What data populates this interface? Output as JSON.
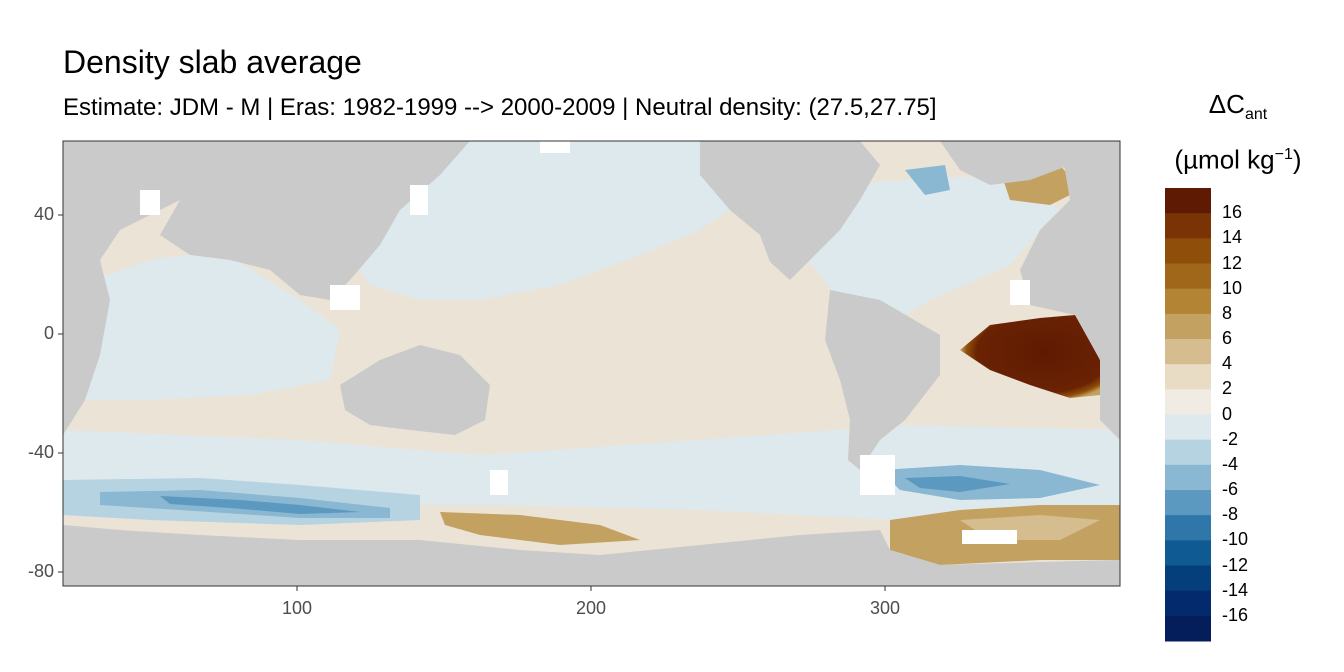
{
  "chart_data": {
    "type": "heatmap",
    "title": "Density slab average",
    "subtitle": "Estimate: JDM - M | Eras: 1982-1999 --> 2000-2009 | Neutral density: (27.5,27.75]",
    "legend": {
      "title_main": "ΔC",
      "title_sub": "ant",
      "unit_main": "(µmol kg",
      "unit_sup": "−1",
      "unit_close": ")",
      "placement": "right",
      "breaks": [
        "16",
        "14",
        "12",
        "10",
        "8",
        "6",
        "4",
        "2",
        "0",
        "-2",
        "-4",
        "-6",
        "-8",
        "-10",
        "-12",
        "-14",
        "-16"
      ],
      "colors": [
        "#5e1a02",
        "#7a3304",
        "#8f4e09",
        "#a0661a",
        "#b28434",
        "#c3a160",
        "#d6bd8f",
        "#e8dcc4",
        "#f0ece4",
        "#dee9ee",
        "#b6d3e2",
        "#8ab7d1",
        "#5b99c1",
        "#2f77a9",
        "#0f5a93",
        "#043f7c",
        "#022a6c",
        "#041e5c"
      ]
    },
    "x_ticks": [
      "100",
      "200",
      "300"
    ],
    "y_ticks": [
      "40",
      "0",
      "-40",
      "-80"
    ],
    "xlim": [
      20,
      380
    ],
    "ylim": [
      -85,
      65
    ],
    "grid": false,
    "land_color": "#cacaca",
    "no_data_color": "#ffffff"
  }
}
